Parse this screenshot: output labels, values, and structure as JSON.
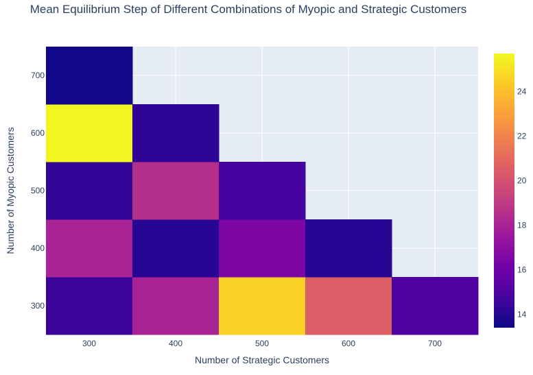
{
  "chart_data": {
    "type": "heatmap",
    "title": "Mean Equilibrium Step of Different Combinations of Myopic and Strategic Customers",
    "xlabel": "Number of Strategic Customers",
    "ylabel": "Number of Myopic Customers",
    "x_categories": [
      300,
      400,
      500,
      600,
      700
    ],
    "y_categories": [
      300,
      400,
      500,
      600,
      700
    ],
    "x_tick_labels": [
      "300",
      "400",
      "500",
      "600",
      "700"
    ],
    "y_tick_labels": [
      "300",
      "400",
      "500",
      "600",
      "700"
    ],
    "z": [
      [
        14.5,
        18.0,
        24.5,
        20.5,
        15.0
      ],
      [
        18.0,
        14.0,
        16.5,
        14.0,
        null
      ],
      [
        14.3,
        18.5,
        14.8,
        null,
        null
      ],
      [
        25.6,
        14.2,
        null,
        null,
        null
      ],
      [
        13.5,
        null,
        null,
        null,
        null
      ]
    ],
    "colorscale": "plasma",
    "zmin": 13.4,
    "zmax": 25.7,
    "colorbar_ticks": [
      14,
      16,
      18,
      20,
      22,
      24
    ],
    "colorbar_tick_labels": [
      "14",
      "16",
      "18",
      "20",
      "22",
      "24"
    ],
    "plot_background": "#e5ecf6",
    "grid": true
  }
}
